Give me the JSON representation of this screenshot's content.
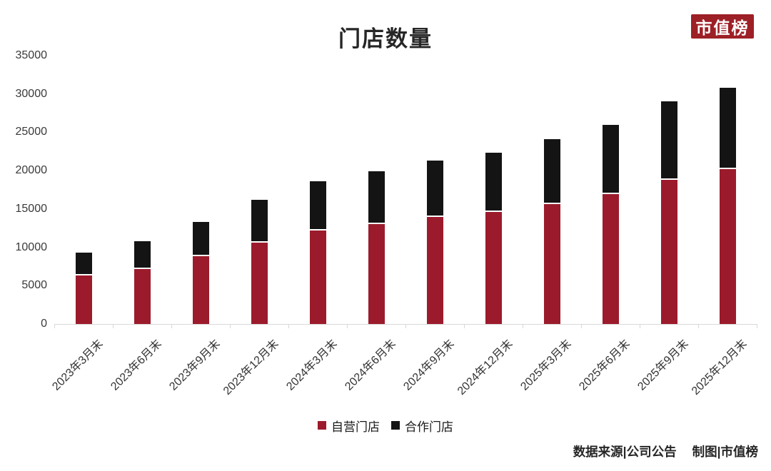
{
  "header": {
    "title": "门店数量",
    "logo_text": "市值榜"
  },
  "footer": {
    "source": "数据来源|公司公告",
    "credit": "制图|市值榜"
  },
  "colors": {
    "self_operated": "#9B1B2C",
    "partner": "#141414",
    "logo_bg": "#9D2026",
    "axis": "#D8D8D8",
    "tick_text": "#3a3a3a"
  },
  "chart_data": {
    "type": "bar",
    "stacked": true,
    "title": "门店数量",
    "xlabel": "",
    "ylabel": "",
    "grid": false,
    "legend_position": "bottom-center",
    "categories": [
      "2023年3月末",
      "2023年6月末",
      "2023年9月末",
      "2023年12月末",
      "2024年3月末",
      "2024年6月末",
      "2024年9月末",
      "2024年12月末",
      "2025年3月末",
      "2025年6月末",
      "2025年9月末",
      "2025年12月末"
    ],
    "series": [
      {
        "name": "自营门店",
        "color_key": "self_operated",
        "values": [
          6310,
          7188,
          8807,
          10598,
          12199,
          13056,
          13936,
          14591,
          15615,
          16900,
          18800,
          20200
        ]
      },
      {
        "name": "合作门店",
        "color_key": "partner",
        "values": [
          3041,
          3648,
          4466,
          5620,
          6391,
          6905,
          7407,
          7749,
          8482,
          9100,
          10200,
          10600
        ]
      }
    ],
    "totals": [
      9351,
      10836,
      13273,
      16218,
      18590,
      19961,
      21343,
      22340,
      24097,
      26000,
      29000,
      30800
    ],
    "y_axis": {
      "min": 0,
      "max": 35000,
      "step": 5000,
      "tick_labels": [
        "0",
        "5000",
        "10000",
        "15000",
        "20000",
        "25000",
        "30000",
        "35000"
      ]
    },
    "legend": [
      "自营门店",
      "合作门店"
    ]
  }
}
